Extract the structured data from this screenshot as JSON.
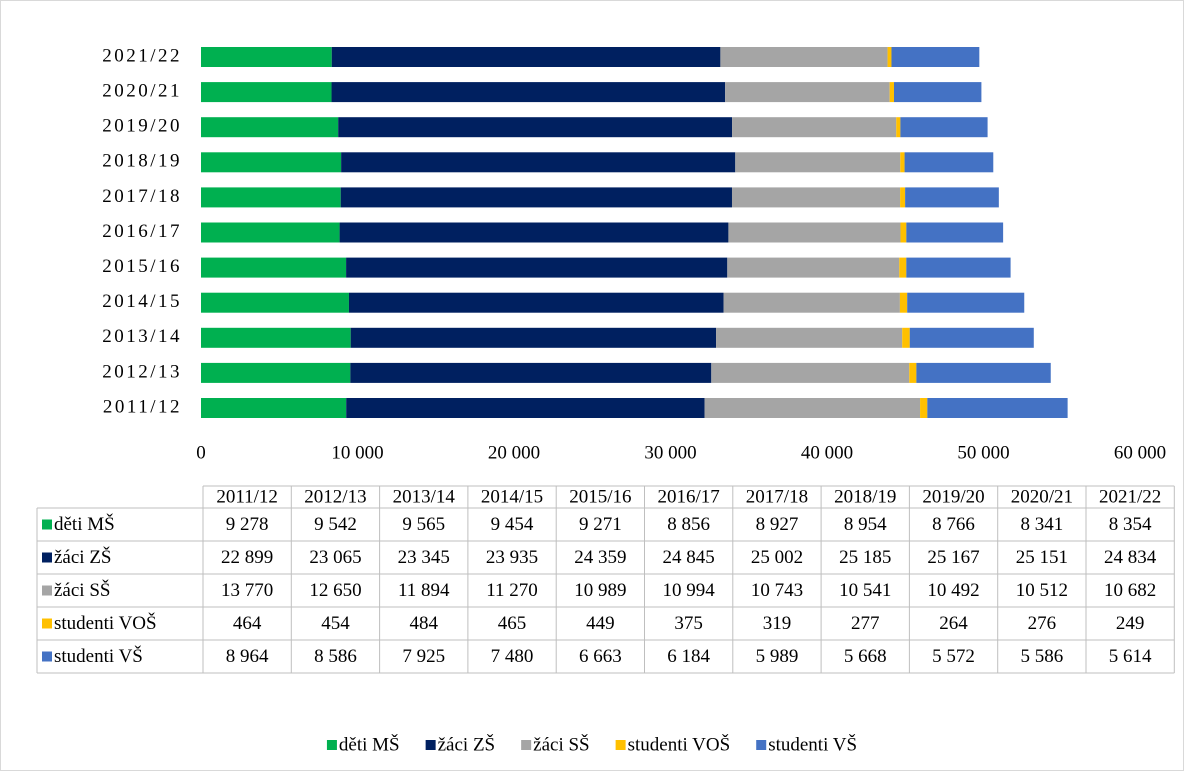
{
  "chart_data": {
    "type": "bar",
    "orientation": "horizontal",
    "stacked": true,
    "categories": [
      "2011/12",
      "2012/13",
      "2013/14",
      "2014/15",
      "2015/16",
      "2016/17",
      "2017/18",
      "2018/19",
      "2019/20",
      "2020/21",
      "2021/22"
    ],
    "series": [
      {
        "name": "děti MŠ",
        "color": "#00b050",
        "values": [
          9278,
          9542,
          9565,
          9454,
          9271,
          8856,
          8927,
          8954,
          8766,
          8341,
          8354
        ],
        "value_labels": [
          "9 278",
          "9 542",
          "9 565",
          "9 454",
          "9 271",
          "8 856",
          "8 927",
          "8 954",
          "8 766",
          "8 341",
          "8 354"
        ]
      },
      {
        "name": "žáci ZŠ",
        "color": "#002060",
        "values": [
          22899,
          23065,
          23345,
          23935,
          24359,
          24845,
          25002,
          25185,
          25167,
          25151,
          24834
        ],
        "value_labels": [
          "22 899",
          "23 065",
          "23 345",
          "23 935",
          "24 359",
          "24 845",
          "25 002",
          "25 185",
          "25 167",
          "25 151",
          "24 834"
        ]
      },
      {
        "name": "žáci SŠ",
        "color": "#a5a5a5",
        "values": [
          13770,
          12650,
          11894,
          11270,
          10989,
          10994,
          10743,
          10541,
          10492,
          10512,
          10682
        ],
        "value_labels": [
          "13 770",
          "12 650",
          "11 894",
          "11 270",
          "10 989",
          "10 994",
          "10 743",
          "10 541",
          "10 492",
          "10 512",
          "10 682"
        ]
      },
      {
        "name": "studenti VOŠ",
        "color": "#ffc000",
        "values": [
          464,
          454,
          484,
          465,
          449,
          375,
          319,
          277,
          264,
          276,
          249
        ]
      },
      {
        "name": "studenti VŠ",
        "color": "#4472c4",
        "values": [
          8964,
          8586,
          7925,
          7480,
          6663,
          6184,
          5989,
          5668,
          5572,
          5586,
          5614
        ],
        "value_labels": [
          "8 964",
          "8 586",
          "7 925",
          "7 480",
          "6 663",
          "6 184",
          "5 989",
          "5 668",
          "5 572",
          "5 586",
          "5 614"
        ]
      }
    ],
    "xlim": [
      0,
      60000
    ],
    "xticks": [
      0,
      {
        "value": 10000,
        "label": "10 000"
      },
      {
        "value": 20000,
        "label": "20 000"
      },
      {
        "value": 30000,
        "label": "30 000"
      },
      {
        "value": 40000,
        "label": "40 000"
      },
      {
        "value": 50000,
        "label": "50 000"
      },
      {
        "value": 60000,
        "label": "60 000"
      }
    ],
    "grid": false,
    "legend": "bottom",
    "data_table": true
  }
}
